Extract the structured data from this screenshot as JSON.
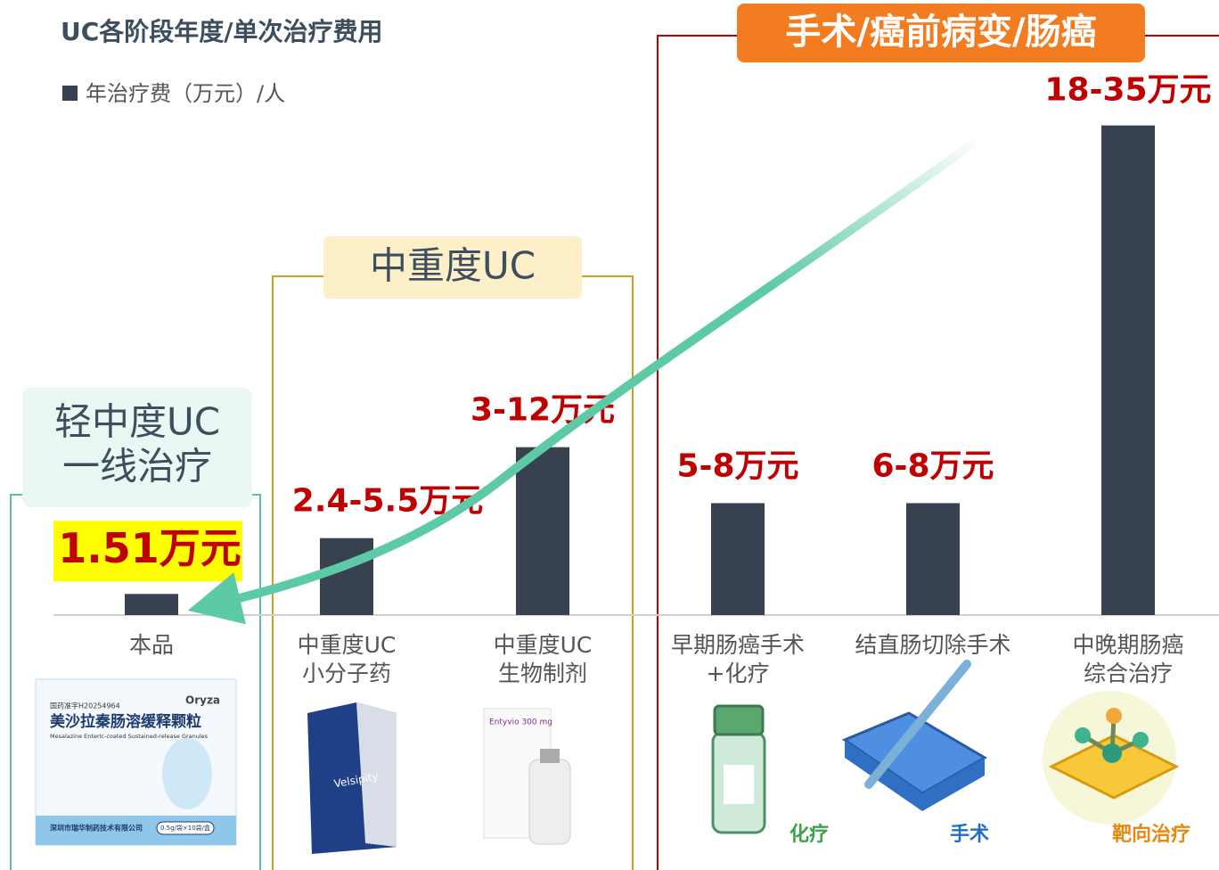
{
  "chart_data": {
    "type": "bar",
    "title": "UC各阶段年度/单次治疗费用",
    "series": [
      {
        "name": "年治疗费（万元）/人",
        "color": "#37414f",
        "values": [
          1.51,
          5.5,
          12,
          8,
          8,
          35
        ],
        "value_labels": [
          "1.51万元",
          "2.4-5.5万元",
          "3-12万元",
          "5-8万元",
          "6-8万元",
          "18-35万元"
        ]
      }
    ],
    "categories": [
      [
        "本品"
      ],
      [
        "中重度UC",
        "小分子药"
      ],
      [
        "中重度UC",
        "生物制剂"
      ],
      [
        "早期肠癌手术",
        "+化疗"
      ],
      [
        "结直肠切除手术"
      ],
      [
        "中晚期肠癌",
        "综合治疗"
      ]
    ],
    "ylim": [
      0,
      36
    ],
    "groups": [
      {
        "lines": [
          "轻中度UC",
          "一线治疗"
        ]
      },
      {
        "lines": [
          "中重度UC"
        ]
      },
      {
        "lines": [
          "手术/癌前病变/肠癌"
        ]
      }
    ],
    "icon_labels": [
      "化疗",
      "手术",
      "靶向治疗"
    ],
    "product": {
      "approval": "国药准字H20254964",
      "brand": "Oryza",
      "name": "美沙拉秦肠溶缓释颗粒",
      "name_en": "Mesalazine Enteric-coated Sustained-release Granules",
      "maker": "深圳市瑞华制药技术有限公司",
      "spec": "0.5g/袋×10袋/盒"
    },
    "drugs": [
      "Velsipity",
      "Entyvio 300 mg"
    ]
  }
}
